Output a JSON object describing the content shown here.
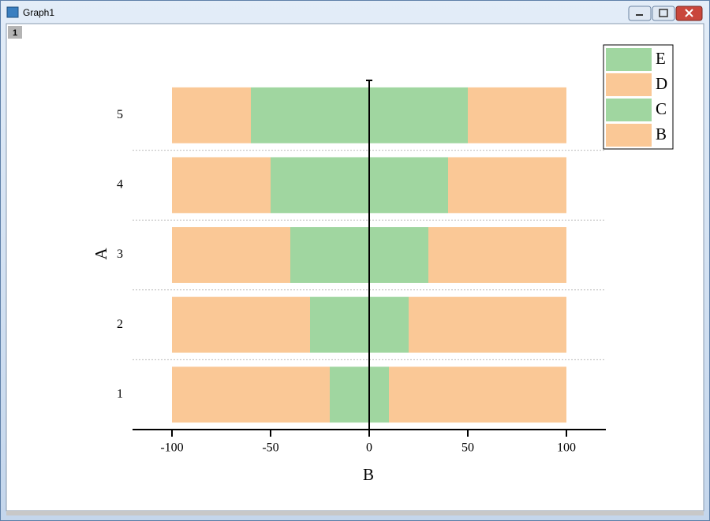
{
  "window": {
    "title": "Graph1",
    "tab": "1"
  },
  "chart_data": {
    "type": "bar",
    "orientation": "horizontal",
    "stacked": true,
    "xlabel": "B",
    "ylabel": "A",
    "categories": [
      "1",
      "2",
      "3",
      "4",
      "5"
    ],
    "series": [
      {
        "name": "E",
        "color": "#a0d6a0",
        "values": [
          10,
          20,
          30,
          40,
          50
        ]
      },
      {
        "name": "D",
        "color": "#fac896",
        "values": [
          90,
          80,
          70,
          60,
          50
        ]
      },
      {
        "name": "C",
        "color": "#a0d6a0",
        "values": [
          -20,
          -30,
          -40,
          -50,
          -60
        ]
      },
      {
        "name": "B",
        "color": "#fac896",
        "values": [
          -80,
          -70,
          -60,
          -50,
          -40
        ]
      }
    ],
    "xlim": [
      -120,
      120
    ],
    "xticks": [
      -100,
      -50,
      0,
      50,
      100
    ],
    "grid": true,
    "legend": "top-right"
  }
}
